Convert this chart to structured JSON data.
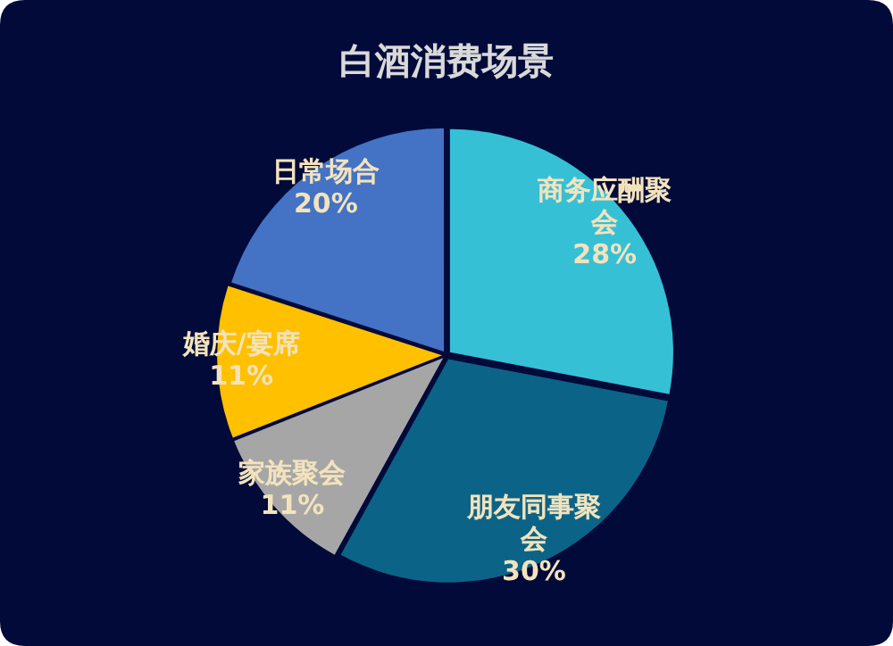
{
  "chart_data": {
    "type": "pie",
    "title": "白酒消费场景",
    "categories": [
      "商务应酬聚会",
      "朋友同事聚会",
      "家族聚会",
      "婚庆/宴席",
      "日常场合"
    ],
    "values": [
      28,
      30,
      11,
      11,
      20
    ],
    "colors": [
      "#36c0d6",
      "#0b6487",
      "#a6a6a6",
      "#ffc000",
      "#4472c4"
    ],
    "value_labels": [
      "28%",
      "30%",
      "11%",
      "11%",
      "20%"
    ],
    "legend": false
  }
}
